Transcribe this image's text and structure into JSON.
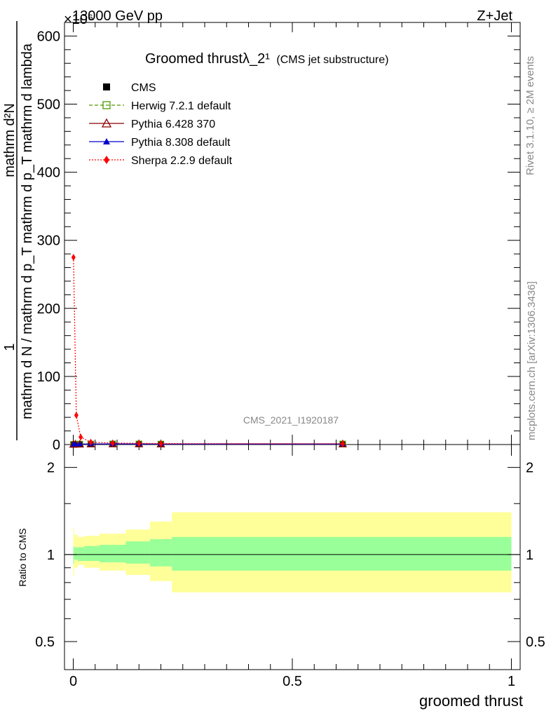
{
  "header": {
    "energy_label": "13000 GeV pp",
    "process_label": "Z+Jet",
    "exponent_label": "×10⁶"
  },
  "side_labels": {
    "rivet": "Rivet 3.1.10, ≥ 2M events",
    "mcplots": "mcplots.cern.ch [arXiv:1306.3436]"
  },
  "chart_data": [
    {
      "type": "line",
      "title": "Groomed thrustλ_2¹",
      "subtitle": "(CMS jet substructure)",
      "analysis_id": "CMS_2021_I1920187",
      "ylabel_numerator": "1",
      "ylabel_fraction_top": "mathrm d²N",
      "ylabel_denominator": "mathrm d N / mathrm d p_T mathrm d p_T mathrm d lambda",
      "ylim": [
        0,
        620
      ],
      "y_ticks": [
        0,
        100,
        200,
        300,
        400,
        500,
        600
      ],
      "y_tick_labels": [
        "0",
        "100",
        "200",
        "300",
        "400",
        "500",
        "600"
      ],
      "xlim": [
        -0.02,
        1.02
      ],
      "legend_position": "top-left",
      "legend": [
        {
          "label": "CMS",
          "color": "#000000",
          "marker": "square-filled",
          "line": "none"
        },
        {
          "label": "Herwig 7.2.1 default",
          "color": "#4d9900",
          "marker": "square-open",
          "line": "dashed"
        },
        {
          "label": "Pythia 6.428 370",
          "color": "#8b0000",
          "marker": "triangle-open",
          "line": "solid"
        },
        {
          "label": "Pythia 8.308 default",
          "color": "#0000cc",
          "marker": "triangle-filled",
          "line": "solid"
        },
        {
          "label": "Sherpa 2.2.9 default",
          "color": "#ff0000",
          "marker": "diamond-filled",
          "line": "dotted"
        }
      ],
      "series": [
        {
          "name": "CMS",
          "x": [
            0.0005,
            0.005,
            0.015,
            0.04,
            0.09,
            0.15,
            0.2,
            0.615
          ],
          "values": [
            0.3,
            0.5,
            0.6,
            0.8,
            0.9,
            0.9,
            0.7,
            0.8
          ]
        },
        {
          "name": "Herwig 7.2.1 default",
          "x": [
            0.0005,
            0.005,
            0.015,
            0.04,
            0.09,
            0.15,
            0.2,
            0.615
          ],
          "values": [
            0.3,
            0.5,
            0.6,
            0.8,
            0.9,
            0.9,
            0.7,
            0.8
          ]
        },
        {
          "name": "Pythia 6.428 370",
          "x": [
            0.0005,
            0.005,
            0.015,
            0.04,
            0.09,
            0.15,
            0.2,
            0.615
          ],
          "values": [
            0.3,
            0.5,
            0.6,
            0.8,
            0.9,
            0.9,
            0.7,
            0.8
          ]
        },
        {
          "name": "Pythia 8.308 default",
          "x": [
            0.0005,
            0.005,
            0.015,
            0.04,
            0.09,
            0.15,
            0.2,
            0.615
          ],
          "values": [
            0.3,
            0.5,
            0.6,
            0.8,
            0.9,
            0.9,
            0.7,
            0.8
          ]
        },
        {
          "name": "Sherpa 2.2.9 default",
          "x": [
            0.0005,
            0.007,
            0.017,
            0.04,
            0.09,
            0.15,
            0.2,
            0.615
          ],
          "values": [
            275,
            43,
            11,
            3.5,
            2.2,
            1.8,
            1.4,
            1.2
          ]
        }
      ]
    },
    {
      "type": "area",
      "ylabel": "Ratio to CMS",
      "xlabel": "groomed thrust",
      "log_scale_y": true,
      "ylim": [
        0.4,
        2.4
      ],
      "y_ticks": [
        0.5,
        1,
        2
      ],
      "y_tick_labels": [
        "0.5",
        "1",
        "2"
      ],
      "xlim": [
        -0.02,
        1.02
      ],
      "x_ticks": [
        0,
        0.5,
        1
      ],
      "x_tick_labels": [
        "0",
        "0.5",
        "1"
      ],
      "reference_line": 1,
      "bin_edges": [
        0.0,
        0.002,
        0.01,
        0.025,
        0.06,
        0.12,
        0.175,
        0.225,
        1.0
      ],
      "inner_band": {
        "name": "stat",
        "color": "#99ff99",
        "low": [
          0.93,
          0.96,
          0.95,
          0.95,
          0.94,
          0.93,
          0.91,
          0.88
        ],
        "high": [
          1.07,
          1.06,
          1.06,
          1.07,
          1.08,
          1.11,
          1.13,
          1.15
        ]
      },
      "outer_band": {
        "name": "stat+syst",
        "color": "#ffff99",
        "low": [
          0.84,
          0.9,
          0.92,
          0.9,
          0.88,
          0.85,
          0.81,
          0.74
        ],
        "high": [
          1.24,
          1.17,
          1.15,
          1.16,
          1.18,
          1.22,
          1.3,
          1.4
        ]
      }
    }
  ]
}
